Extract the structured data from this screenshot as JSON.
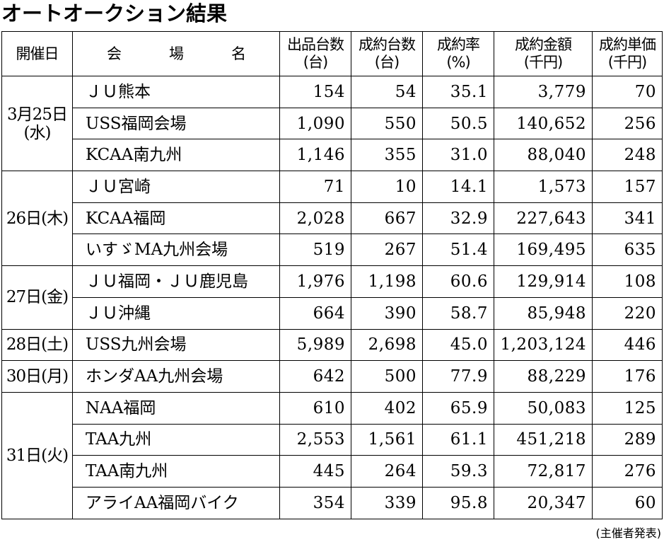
{
  "title": "オートオークション結果",
  "headers": {
    "date": "開催日",
    "venue_chars": [
      "会",
      "場",
      "名"
    ],
    "listed": [
      "出品台数",
      "(台)"
    ],
    "contracted": [
      "成約台数",
      "(台)"
    ],
    "rate": [
      "成約率",
      "(%)"
    ],
    "amount": [
      "成約金額",
      "(千円)"
    ],
    "unit_price": [
      "成約単価",
      "(千円)"
    ]
  },
  "groups": [
    {
      "date": [
        "3月25日",
        "(水)"
      ],
      "rows": [
        {
          "venue": "ＪＵ熊本",
          "listed": "154",
          "contracted": "54",
          "rate": "35.1",
          "amount": "3,779",
          "unit_price": "70"
        },
        {
          "venue": "USS福岡会場",
          "listed": "1,090",
          "contracted": "550",
          "rate": "50.5",
          "amount": "140,652",
          "unit_price": "256"
        },
        {
          "venue": "KCAA南九州",
          "listed": "1,146",
          "contracted": "355",
          "rate": "31.0",
          "amount": "88,040",
          "unit_price": "248"
        }
      ]
    },
    {
      "date": [
        "26日(木)"
      ],
      "rows": [
        {
          "venue": "ＪＵ宮崎",
          "listed": "71",
          "contracted": "10",
          "rate": "14.1",
          "amount": "1,573",
          "unit_price": "157"
        },
        {
          "venue": "KCAA福岡",
          "listed": "2,028",
          "contracted": "667",
          "rate": "32.9",
          "amount": "227,643",
          "unit_price": "341"
        },
        {
          "venue": "いすゞMA九州会場",
          "listed": "519",
          "contracted": "267",
          "rate": "51.4",
          "amount": "169,495",
          "unit_price": "635"
        }
      ]
    },
    {
      "date": [
        "27日(金)"
      ],
      "rows": [
        {
          "venue": "ＪＵ福岡・ＪＵ鹿児島",
          "listed": "1,976",
          "contracted": "1,198",
          "rate": "60.6",
          "amount": "129,914",
          "unit_price": "108"
        },
        {
          "venue": "ＪＵ沖縄",
          "listed": "664",
          "contracted": "390",
          "rate": "58.7",
          "amount": "85,948",
          "unit_price": "220"
        }
      ]
    },
    {
      "date": [
        "28日(土)"
      ],
      "rows": [
        {
          "venue": "USS九州会場",
          "listed": "5,989",
          "contracted": "2,698",
          "rate": "45.0",
          "amount": "1,203,124",
          "unit_price": "446"
        }
      ]
    },
    {
      "date": [
        "30日(月)"
      ],
      "rows": [
        {
          "venue": "ホンダAA九州会場",
          "listed": "642",
          "contracted": "500",
          "rate": "77.9",
          "amount": "88,229",
          "unit_price": "176"
        }
      ]
    },
    {
      "date": [
        "31日(火)"
      ],
      "rows": [
        {
          "venue": "NAA福岡",
          "listed": "610",
          "contracted": "402",
          "rate": "65.9",
          "amount": "50,083",
          "unit_price": "125"
        },
        {
          "venue": "TAA九州",
          "listed": "2,553",
          "contracted": "1,561",
          "rate": "61.1",
          "amount": "451,218",
          "unit_price": "289"
        },
        {
          "venue": "TAA南九州",
          "listed": "445",
          "contracted": "264",
          "rate": "59.3",
          "amount": "72,817",
          "unit_price": "276"
        },
        {
          "venue": "アライAA福岡バイク",
          "listed": "354",
          "contracted": "339",
          "rate": "95.8",
          "amount": "20,347",
          "unit_price": "60"
        }
      ]
    }
  ],
  "source": "(主催者発表)"
}
